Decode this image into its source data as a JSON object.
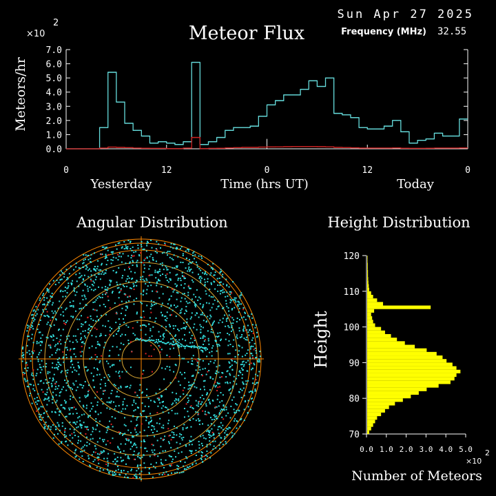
{
  "header": {
    "date": "Sun Apr 27 2025",
    "title": "Meteor Flux",
    "frequency_label": "Frequency (MHz)",
    "frequency_value": "32.55",
    "scale_label": "×10",
    "scale_exp": "2"
  },
  "colors": {
    "background": "#000000",
    "flux_line": "#66dddd",
    "flux_secondary": "#cc2222",
    "ring": "#ff8800",
    "ring_inner": "#ddaa33",
    "sky_points": "#33dddd",
    "sky_points_secondary": "#dd2222",
    "height_bars": "#ffff00"
  },
  "chart_data": [
    {
      "type": "line",
      "title": "Meteor Flux",
      "ylabel": "Meteors/hr",
      "xlabel": "Time (hrs UT)",
      "day_labels": [
        "Yesterday",
        "Today"
      ],
      "x_ticks": [
        "0",
        "12",
        "0",
        "12",
        "0"
      ],
      "y_ticks": [
        "0.0",
        "1.0",
        "2.0",
        "3.0",
        "4.0",
        "5.0",
        "6.0",
        "7.0"
      ],
      "y_scale": "×10^2",
      "ylim": [
        0,
        7
      ],
      "xlim": [
        0,
        48
      ],
      "series": [
        {
          "values": [
            0,
            0,
            0,
            0,
            1.5,
            5.4,
            3.3,
            1.8,
            1.3,
            0.9,
            0.4,
            0.5,
            0.4,
            0.3,
            0.5,
            6.1,
            0.3,
            0.5,
            0.8,
            1.3,
            1.5,
            1.5,
            1.6,
            2.3,
            3.1,
            3.4,
            3.8,
            3.8,
            4.2,
            4.8,
            4.4,
            5.0,
            2.5,
            2.4,
            2.2,
            1.5,
            1.4,
            1.4,
            1.6,
            2.0,
            1.2,
            0.4,
            0.6,
            0.7,
            1.1,
            0.9,
            0.9,
            2.1
          ]
        },
        {
          "values": [
            0,
            0,
            0,
            0,
            0.05,
            0.12,
            0.1,
            0.08,
            0.05,
            0.04,
            0.03,
            0.03,
            0.02,
            0.02,
            0.05,
            0.8,
            0.02,
            0.03,
            0.04,
            0.06,
            0.08,
            0.1,
            0.1,
            0.12,
            0.13,
            0.14,
            0.15,
            0.16,
            0.16,
            0.16,
            0.15,
            0.14,
            0.1,
            0.09,
            0.07,
            0.05,
            0.05,
            0.05,
            0.05,
            0.06,
            0.04,
            0.03,
            0.03,
            0.04,
            0.05,
            0.05,
            0.05,
            0.06
          ]
        }
      ]
    },
    {
      "type": "scatter",
      "title": "Angular Distribution",
      "note": "polar sky plot of meteor echo positions with concentric range rings"
    },
    {
      "type": "bar",
      "title": "Height Distribution",
      "orientation": "horizontal",
      "ylabel": "Height",
      "xlabel": "Number of Meteors",
      "x_ticks": [
        "0.0",
        "1.0",
        "2.0",
        "3.0",
        "4.0",
        "5.0"
      ],
      "x_scale": "×10^2",
      "y_ticks": [
        "70",
        "80",
        "90",
        "100",
        "110",
        "120"
      ],
      "ylim": [
        70,
        120
      ],
      "xlim": [
        0,
        5
      ],
      "heights": [
        71,
        72,
        73,
        74,
        75,
        76,
        77,
        78,
        79,
        80,
        81,
        82,
        83,
        84,
        85,
        86,
        87,
        88,
        89,
        90,
        91,
        92,
        93,
        94,
        95,
        96,
        97,
        98,
        99,
        100,
        101,
        102,
        103,
        104,
        105,
        106,
        107,
        108,
        109,
        110,
        111,
        112,
        113,
        114,
        115,
        116,
        117,
        118,
        119,
        120
      ],
      "values": [
        0.1,
        0.2,
        0.3,
        0.4,
        0.5,
        0.7,
        0.9,
        1.1,
        1.4,
        1.8,
        2.2,
        2.6,
        3.0,
        3.6,
        4.2,
        4.4,
        4.5,
        4.7,
        4.5,
        4.3,
        4.0,
        3.8,
        3.5,
        3.0,
        2.4,
        1.9,
        1.5,
        1.2,
        0.9,
        0.7,
        0.4,
        0.3,
        0.25,
        0.2,
        0.35,
        3.2,
        0.8,
        0.5,
        0.3,
        0.2,
        0.1,
        0.08,
        0.06,
        0.05,
        0.04,
        0.04,
        0.03,
        0.03,
        0.02,
        0.02
      ]
    }
  ]
}
